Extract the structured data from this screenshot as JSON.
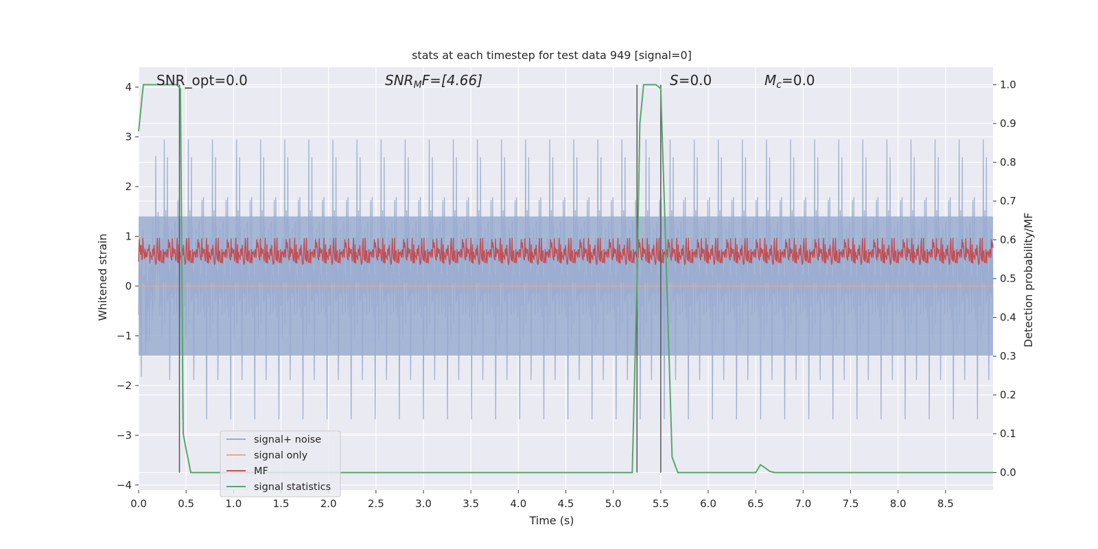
{
  "chart_data": {
    "type": "line",
    "title": "stats at each timestep for test data 949 [signal=0]",
    "xlabel": "Time (s)",
    "ylabel": "Whitened strain",
    "y2label": "Detection probability/MF",
    "xlim": [
      0,
      9.0
    ],
    "ylim": [
      -4.1,
      4.4
    ],
    "y2lim": [
      -0.045,
      1.045
    ],
    "xticks": [
      "0.0",
      "0.5",
      "1.0",
      "1.5",
      "2.0",
      "2.5",
      "3.0",
      "3.5",
      "4.0",
      "4.5",
      "5.0",
      "5.5",
      "6.0",
      "6.5",
      "7.0",
      "7.5",
      "8.0",
      "8.5"
    ],
    "xtick_values": [
      0,
      0.5,
      1,
      1.5,
      2,
      2.5,
      3,
      3.5,
      4,
      4.5,
      5,
      5.5,
      6,
      6.5,
      7,
      7.5,
      8,
      8.5
    ],
    "yticks": [
      "4",
      "3",
      "2",
      "1",
      "0",
      "−1",
      "−2",
      "−3",
      "−4"
    ],
    "ytick_values": [
      4,
      3,
      2,
      1,
      0,
      -1,
      -2,
      -3,
      -4
    ],
    "y2ticks": [
      "1.0",
      "0.9",
      "0.8",
      "0.7",
      "0.6",
      "0.5",
      "0.4",
      "0.3",
      "0.2",
      "0.1",
      "0.0"
    ],
    "y2tick_values": [
      1.0,
      0.9,
      0.8,
      0.7,
      0.6,
      0.5,
      0.4,
      0.3,
      0.2,
      0.1,
      0.0
    ],
    "grid": true,
    "legend_position": "lower-left",
    "annotations": {
      "snr_opt": "SNR_opt=0.0",
      "snr_mf_base": "SNR",
      "snr_mf_sub": "M",
      "snr_mf_rest": "F=[4.66]",
      "s_label": "S",
      "s_value": "=0.0",
      "mc_base": "M",
      "mc_sub": "c",
      "mc_value": "=0.0"
    },
    "series": [
      {
        "name": "signal+ noise",
        "color": "#9aadd0",
        "description_range": [
          -3.5,
          3.5
        ],
        "envelope": 1.4,
        "axis": "left"
      },
      {
        "name": "signal only",
        "color": "#e8a88a",
        "values_constant": 0.0,
        "axis": "left"
      },
      {
        "name": "MF",
        "color": "#c44e52",
        "base_range": [
          0.0,
          0.9
        ],
        "axis": "right"
      },
      {
        "name": "signal statistics",
        "color": "#55a868",
        "axis": "right",
        "x": [
          0.0,
          0.05,
          0.1,
          0.2,
          0.3,
          0.4,
          0.44,
          0.47,
          0.5,
          0.55,
          0.6,
          0.8,
          1.0,
          2.0,
          3.0,
          4.0,
          5.0,
          5.2,
          5.25,
          5.28,
          5.32,
          5.4,
          5.45,
          5.5,
          5.55,
          5.62,
          5.68,
          6.0,
          6.3,
          6.5,
          6.55,
          6.6,
          6.65,
          6.7,
          7.0,
          8.0,
          9.0
        ],
        "y": [
          0.88,
          1.0,
          1.0,
          1.0,
          1.0,
          1.0,
          0.99,
          0.1,
          0.06,
          0.0,
          0.0,
          0.0,
          0.0,
          0.0,
          0.0,
          0.0,
          0.0,
          0.0,
          0.5,
          0.9,
          1.0,
          1.0,
          1.0,
          0.99,
          0.6,
          0.04,
          0.0,
          0.0,
          0.0,
          0.0,
          0.02,
          0.012,
          0.003,
          0.0,
          0.0,
          0.0,
          0.0
        ]
      }
    ],
    "vertical_lines_x": [
      0.43,
      5.25,
      5.5
    ],
    "vertical_lines_color": "#555555"
  }
}
